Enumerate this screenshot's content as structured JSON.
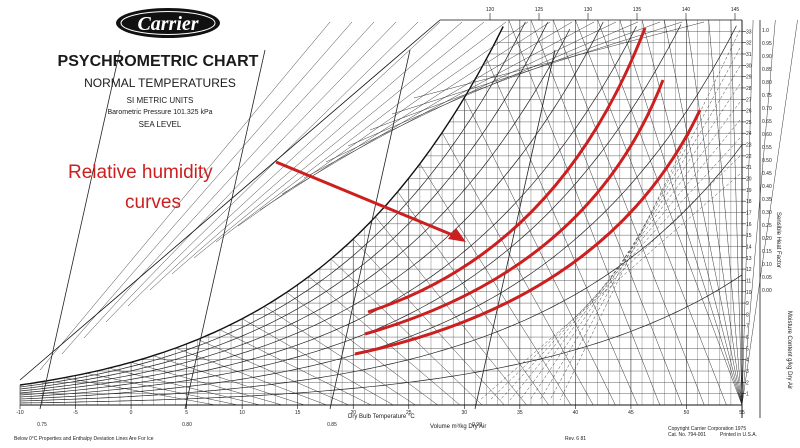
{
  "header": {
    "brand": "Carrier",
    "title": "PSYCHROMETRIC CHART",
    "subtitle": "NORMAL TEMPERATURES",
    "units": "SI METRIC UNITS",
    "pressure": "Barometric Pressure 101.325 kPa",
    "elevation": "SEA LEVEL"
  },
  "annotation": {
    "line1": "Relative humidity",
    "line2": "curves",
    "color": "#cc1f1f"
  },
  "axes": {
    "x_title": "Dry Bulb Temperature °C",
    "x_ticks": [
      "-10",
      "-5",
      "0",
      "5",
      "10",
      "15",
      "20",
      "25",
      "30",
      "35",
      "40",
      "45",
      "50",
      "55"
    ],
    "right_ticks": [
      "33",
      "32",
      "31",
      "30",
      "29",
      "28",
      "27",
      "26",
      "25",
      "24",
      "23",
      "22",
      "21",
      "20",
      "19",
      "18",
      "17",
      "16",
      "15",
      "14",
      "13",
      "12",
      "11",
      "10",
      "9",
      "8",
      "7",
      "6",
      "5",
      "4",
      "3",
      "2",
      "1"
    ],
    "right_title": "Moisture Content g/kg Dry Air",
    "ratio_ticks": [
      "1.0",
      "0.95",
      "0.90",
      "0.85",
      "0.80",
      "0.75",
      "0.70",
      "0.65",
      "0.60",
      "0.55",
      "0.50",
      "0.45",
      "0.40",
      "0.35",
      "0.30",
      "0.25",
      "0.20",
      "0.15",
      "0.10",
      "0.05",
      "0.00"
    ],
    "ratio_title": "Sensible Heat Factor",
    "top_ticks": [
      "120",
      "125",
      "130",
      "135",
      "140",
      "145"
    ],
    "volume_ticks": [
      "0.75",
      "0.80",
      "0.85",
      "0.90"
    ],
    "volume_title": "Volume m³/kg Dry Air"
  },
  "footer": {
    "note": "Below 0°C Properties and Enthalpy Deviation Lines Are For Ice",
    "rev": "Rev. 6 81",
    "copyright": "Copyright Carrier Corporation 1975",
    "catalog": "Cat. No. 794-001",
    "printed": "Printed in U.S.A."
  }
}
